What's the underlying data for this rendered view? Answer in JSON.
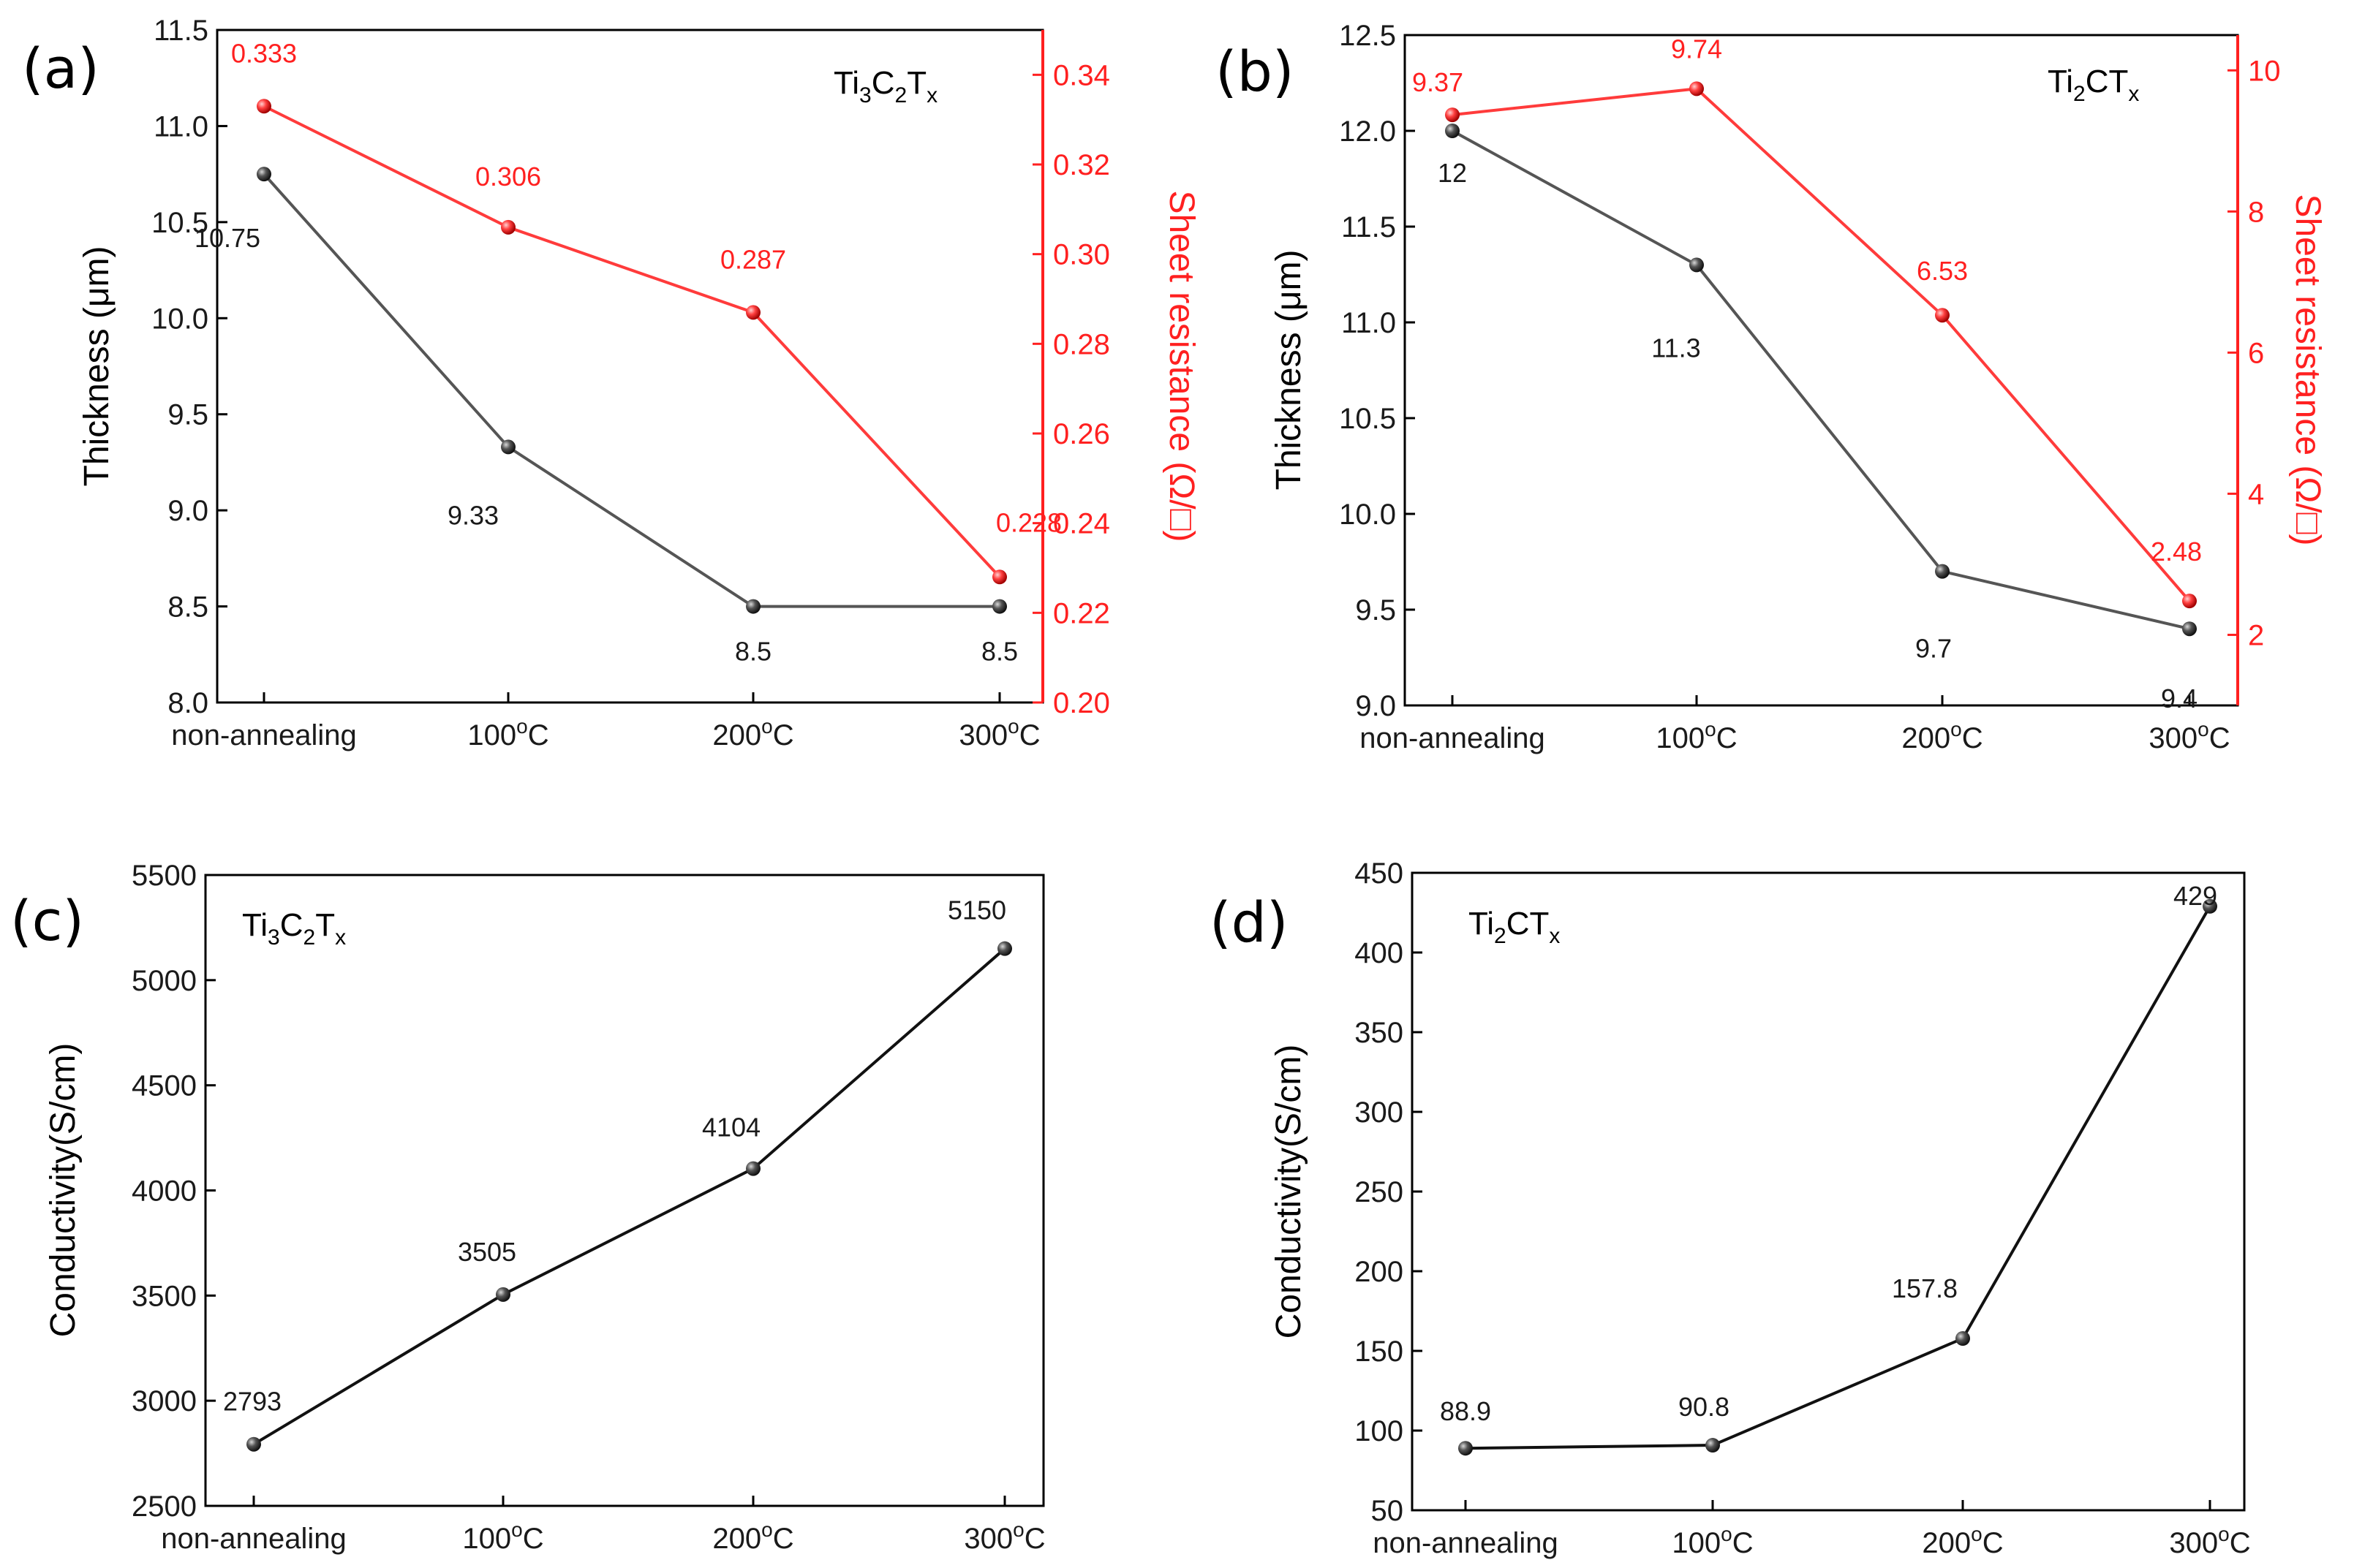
{
  "figure": {
    "panels": {
      "a": {
        "label": "(a)",
        "compound": {
          "base1": "Ti",
          "sub1": "3",
          "base2": "C",
          "sub2": "2",
          "base3": "T",
          "sub3": "x"
        }
      },
      "b": {
        "label": "(b)",
        "compound": {
          "base1": "Ti",
          "sub1": "2",
          "base2": "CT",
          "sub2": "x"
        }
      },
      "c": {
        "label": "(c)",
        "compound": {
          "base1": "Ti",
          "sub1": "3",
          "base2": "C",
          "sub2": "2",
          "base3": "T",
          "sub3": "x"
        }
      },
      "d": {
        "label": "(d)",
        "compound": {
          "base1": "Ti",
          "sub1": "2",
          "base2": "CT",
          "sub2": "x"
        }
      }
    }
  },
  "colors": {
    "thickness": "#555555",
    "sheet_resistance": "#ff2020",
    "conductivity": "#111111"
  },
  "chart_data": [
    {
      "id": "a",
      "type": "line",
      "categories": [
        "non-annealing",
        "100°C",
        "200°C",
        "300°C"
      ],
      "category_parts": [
        {
          "base": "non-annealing",
          "sup": ""
        },
        {
          "base": "100",
          "sup": "o",
          "unit": "C"
        },
        {
          "base": "200",
          "sup": "o",
          "unit": "C"
        },
        {
          "base": "300",
          "sup": "o",
          "unit": "C"
        }
      ],
      "ylabel": "Thickness (μm)",
      "ylim": [
        8.0,
        11.5
      ],
      "yticks": [
        "8.0",
        "8.5",
        "9.0",
        "9.5",
        "10.0",
        "10.5",
        "11.0",
        "11.5"
      ],
      "y2label": "Sheet resistance (Ω/□)",
      "y2lim": [
        0.2,
        0.35
      ],
      "y2ticks": [
        "0.20",
        "0.22",
        "0.24",
        "0.26",
        "0.28",
        "0.30",
        "0.32",
        "0.34"
      ],
      "series": [
        {
          "name": "Thickness",
          "axis": "left",
          "values": [
            10.75,
            9.33,
            8.5,
            8.5
          ],
          "labels": [
            "10.75",
            "9.33",
            "8.5",
            "8.5"
          ]
        },
        {
          "name": "Sheet resistance",
          "axis": "right",
          "values": [
            0.333,
            0.306,
            0.287,
            0.228
          ],
          "labels": [
            "0.333",
            "0.306",
            "0.287",
            "0.228"
          ]
        }
      ]
    },
    {
      "id": "b",
      "type": "line",
      "categories": [
        "non-annealing",
        "100°C",
        "200°C",
        "300°C"
      ],
      "category_parts": [
        {
          "base": "non-annealing",
          "sup": ""
        },
        {
          "base": "100",
          "sup": "o",
          "unit": "C"
        },
        {
          "base": "200",
          "sup": "o",
          "unit": "C"
        },
        {
          "base": "300",
          "sup": "o",
          "unit": "C"
        }
      ],
      "ylabel": "Thickness (μm)",
      "ylim": [
        9.0,
        12.5
      ],
      "yticks": [
        "9.0",
        "9.5",
        "10.0",
        "10.5",
        "11.0",
        "11.5",
        "12.0",
        "12.5"
      ],
      "y2label": "Sheet resistance (Ω/□)",
      "y2lim": [
        1.0,
        10.5
      ],
      "y2ticks": [
        "2",
        "4",
        "6",
        "8",
        "10"
      ],
      "series": [
        {
          "name": "Thickness",
          "axis": "left",
          "values": [
            12.0,
            11.3,
            9.7,
            9.4
          ],
          "labels": [
            "12",
            "11.3",
            "9.7",
            "9.4"
          ]
        },
        {
          "name": "Sheet resistance",
          "axis": "right",
          "values": [
            9.37,
            9.74,
            6.53,
            2.48
          ],
          "labels": [
            "9.37",
            "9.74",
            "6.53",
            "2.48"
          ]
        }
      ]
    },
    {
      "id": "c",
      "type": "line",
      "categories": [
        "non-annealing",
        "100°C",
        "200°C",
        "300°C"
      ],
      "category_parts": [
        {
          "base": "non-annealing",
          "sup": ""
        },
        {
          "base": "100",
          "sup": "o",
          "unit": "C"
        },
        {
          "base": "200",
          "sup": "o",
          "unit": "C"
        },
        {
          "base": "300",
          "sup": "o",
          "unit": "C"
        }
      ],
      "ylabel": "Conductivity(S/cm)",
      "ylim": [
        2500,
        5500
      ],
      "yticks": [
        "2500",
        "3000",
        "3500",
        "4000",
        "4500",
        "5000",
        "5500"
      ],
      "series": [
        {
          "name": "Conductivity",
          "axis": "left",
          "values": [
            2793,
            3505,
            4104,
            5150
          ],
          "labels": [
            "2793",
            "3505",
            "4104",
            "5150"
          ]
        }
      ]
    },
    {
      "id": "d",
      "type": "line",
      "categories": [
        "non-annealing",
        "100°C",
        "200°C",
        "300°C"
      ],
      "category_parts": [
        {
          "base": "non-annealing",
          "sup": ""
        },
        {
          "base": "100",
          "sup": "o",
          "unit": "C"
        },
        {
          "base": "200",
          "sup": "o",
          "unit": "C"
        },
        {
          "base": "300",
          "sup": "o",
          "unit": "C"
        }
      ],
      "ylabel": "Conductivity(S/cm)",
      "ylim": [
        50,
        450
      ],
      "yticks": [
        "50",
        "100",
        "150",
        "200",
        "250",
        "300",
        "350",
        "400",
        "450"
      ],
      "series": [
        {
          "name": "Conductivity",
          "axis": "left",
          "values": [
            88.9,
            90.8,
            157.8,
            429
          ],
          "labels": [
            "88.9",
            "90.8",
            "157.8",
            "429"
          ]
        }
      ]
    }
  ]
}
